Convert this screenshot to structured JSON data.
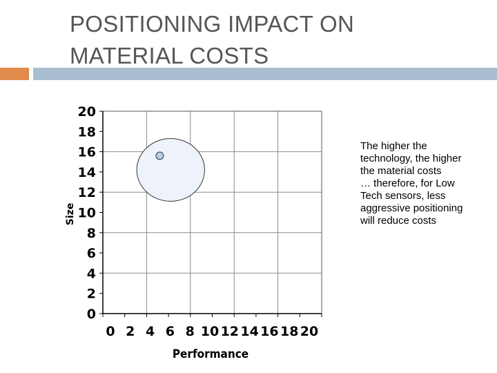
{
  "slide": {
    "title_lines": [
      "POSITIONING IMPACT ON",
      "MATERIAL COSTS"
    ],
    "note_lines": [
      "The higher the",
      "technology, the higher",
      "the material costs",
      "… therefore, for Low",
      "Tech sensors, less",
      "aggressive positioning",
      "will reduce costs"
    ],
    "colors": {
      "accent_orange": "#E08A4C",
      "accent_blue": "#A9BFD1",
      "title": "#555555",
      "bubble_fill": "#EEF3FB",
      "point_fill": "#B4CCE6"
    }
  },
  "chart_data": {
    "type": "scatter",
    "title": "",
    "xlabel": "Performance",
    "ylabel": "Size",
    "xlim": [
      0,
      20
    ],
    "ylim": [
      0,
      20
    ],
    "xticks": [
      0,
      2,
      4,
      6,
      8,
      10,
      12,
      14,
      16,
      18,
      20
    ],
    "yticks": [
      0,
      2,
      4,
      6,
      8,
      10,
      12,
      14,
      16,
      18,
      20
    ],
    "grid": true,
    "shapes": [
      {
        "kind": "circle",
        "center": [
          6.2,
          14.2
        ],
        "radius": 3.1
      }
    ],
    "series": [
      {
        "points": [
          [
            5.2,
            15.6
          ]
        ]
      }
    ]
  }
}
